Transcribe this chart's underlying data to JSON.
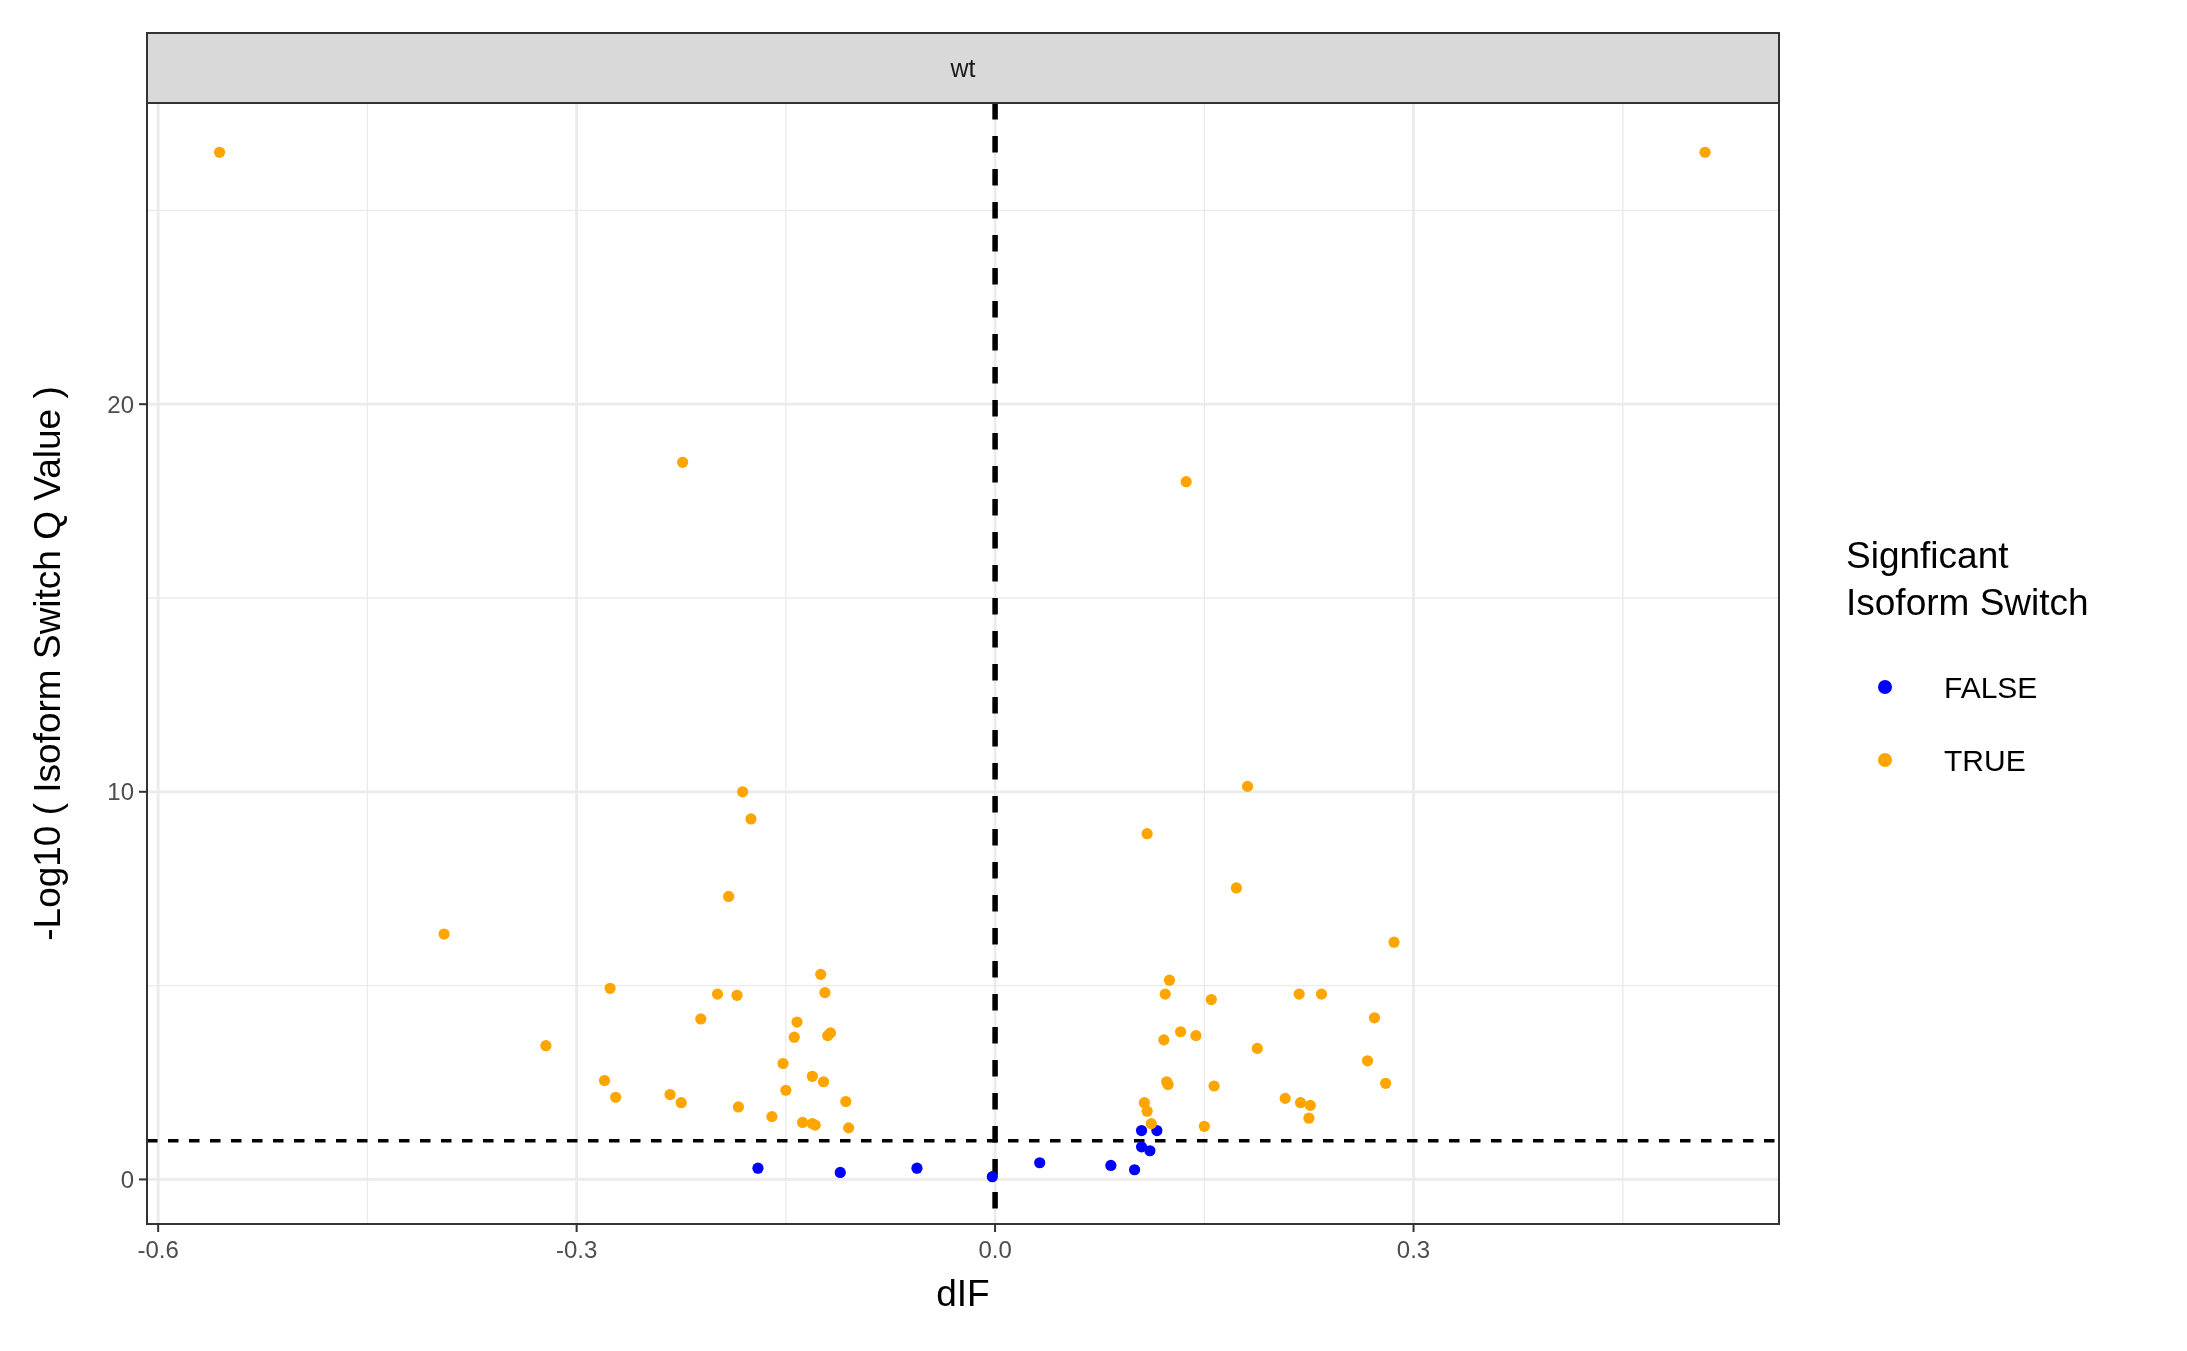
{
  "chart_data": {
    "type": "scatter",
    "title": "wt",
    "xlabel": "dIF",
    "ylabel": "-Log10 ( Isoform Switch Q Value )",
    "legend_title": "Signficant\nIsoform Switch",
    "legend": "right",
    "grid": true,
    "marker": "circle",
    "xlim": [
      -0.608,
      0.562
    ],
    "ylim": [
      -1.15,
      27.77
    ],
    "xticks": [
      -0.6,
      -0.3,
      {
        "value": 0,
        "label": "0.0"
      },
      0.3
    ],
    "yticks": [
      0,
      10,
      20
    ],
    "ref_lines": [
      {
        "axis": "x",
        "value": 0,
        "color": "#000000",
        "line_style": "dashed"
      },
      {
        "axis": "y",
        "value": 1,
        "color": "#000000",
        "line_style": "dashed"
      }
    ],
    "series": [
      {
        "name": "FALSE",
        "color": "#0000ff",
        "x": [
          -0.17,
          -0.111,
          -0.056,
          -0.002,
          0.032,
          0.083,
          0.1,
          0.105,
          0.116,
          0.105,
          0.111
        ],
        "values": [
          0.29,
          0.18,
          0.29,
          0.07,
          0.43,
          0.36,
          0.25,
          1.26,
          1.26,
          0.84,
          0.74
        ]
      },
      {
        "name": "TRUE",
        "color": "#ffa500",
        "x": [
          -0.556,
          0.509,
          -0.224,
          0.137,
          -0.181,
          -0.175,
          -0.191,
          -0.395,
          -0.276,
          -0.199,
          -0.185,
          -0.211,
          -0.322,
          -0.125,
          -0.122,
          -0.142,
          -0.144,
          -0.118,
          -0.12,
          -0.152,
          -0.15,
          -0.131,
          -0.123,
          -0.28,
          -0.272,
          -0.233,
          -0.225,
          -0.184,
          -0.16,
          -0.138,
          -0.131,
          -0.129,
          -0.107,
          -0.105,
          0.181,
          0.109,
          0.173,
          0.286,
          0.125,
          0.122,
          0.155,
          0.218,
          0.234,
          0.272,
          0.121,
          0.133,
          0.144,
          0.188,
          0.267,
          0.123,
          0.124,
          0.157,
          0.28,
          0.107,
          0.109,
          0.112,
          0.15,
          0.208,
          0.219,
          0.226,
          0.225
        ],
        "values": [
          26.5,
          26.5,
          18.5,
          18.0,
          10.0,
          9.3,
          7.3,
          6.33,
          4.93,
          4.78,
          4.75,
          4.14,
          3.45,
          5.29,
          4.82,
          4.06,
          3.67,
          3.78,
          3.71,
          2.99,
          2.3,
          2.66,
          2.52,
          2.55,
          2.12,
          2.19,
          1.98,
          1.87,
          1.62,
          1.47,
          1.44,
          1.4,
          2.01,
          1.33,
          10.14,
          8.92,
          7.52,
          6.12,
          5.14,
          4.78,
          4.64,
          4.78,
          4.78,
          4.17,
          3.6,
          3.81,
          3.71,
          3.38,
          3.06,
          2.52,
          2.45,
          2.41,
          2.48,
          1.98,
          1.76,
          1.44,
          1.37,
          2.09,
          1.98,
          1.91,
          1.58
        ]
      }
    ]
  }
}
